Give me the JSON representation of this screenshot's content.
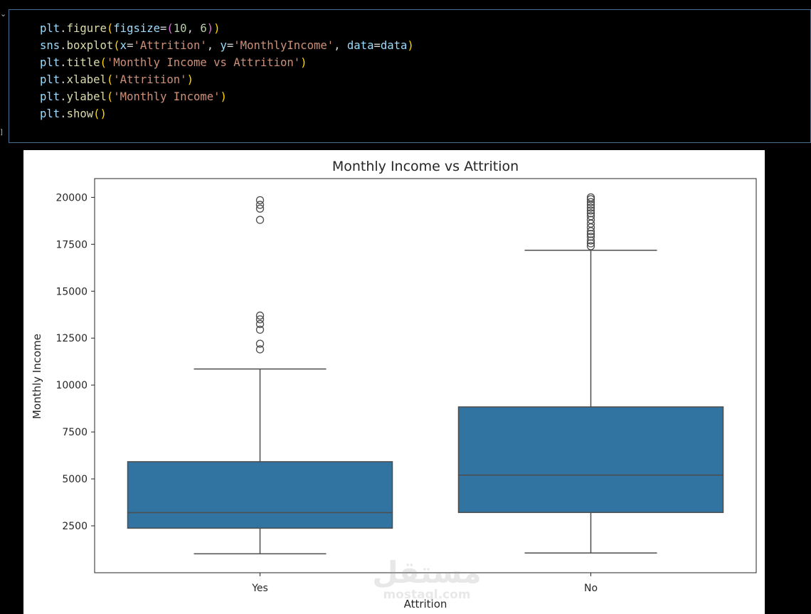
{
  "cell": {
    "code_lines": [
      [
        {
          "t": "plt",
          "c": "var"
        },
        {
          "t": ".",
          "c": "op"
        },
        {
          "t": "figure",
          "c": "fn"
        },
        {
          "t": "(",
          "c": "p1"
        },
        {
          "t": "figsize",
          "c": "var"
        },
        {
          "t": "=",
          "c": "op"
        },
        {
          "t": "(",
          "c": "p2"
        },
        {
          "t": "10",
          "c": "num"
        },
        {
          "t": ", ",
          "c": "op"
        },
        {
          "t": "6",
          "c": "num"
        },
        {
          "t": ")",
          "c": "p2"
        },
        {
          "t": ")",
          "c": "p1"
        }
      ],
      [
        {
          "t": "sns",
          "c": "var"
        },
        {
          "t": ".",
          "c": "op"
        },
        {
          "t": "boxplot",
          "c": "fn"
        },
        {
          "t": "(",
          "c": "p1"
        },
        {
          "t": "x",
          "c": "var"
        },
        {
          "t": "=",
          "c": "op"
        },
        {
          "t": "'Attrition'",
          "c": "str"
        },
        {
          "t": ", ",
          "c": "op"
        },
        {
          "t": "y",
          "c": "var"
        },
        {
          "t": "=",
          "c": "op"
        },
        {
          "t": "'MonthlyIncome'",
          "c": "str"
        },
        {
          "t": ", ",
          "c": "op"
        },
        {
          "t": "data",
          "c": "var"
        },
        {
          "t": "=",
          "c": "op"
        },
        {
          "t": "data",
          "c": "var"
        },
        {
          "t": ")",
          "c": "p1"
        }
      ],
      [
        {
          "t": "plt",
          "c": "var"
        },
        {
          "t": ".",
          "c": "op"
        },
        {
          "t": "title",
          "c": "fn"
        },
        {
          "t": "(",
          "c": "p1"
        },
        {
          "t": "'Monthly Income vs Attrition'",
          "c": "str"
        },
        {
          "t": ")",
          "c": "p1"
        }
      ],
      [
        {
          "t": "plt",
          "c": "var"
        },
        {
          "t": ".",
          "c": "op"
        },
        {
          "t": "xlabel",
          "c": "fn"
        },
        {
          "t": "(",
          "c": "p1"
        },
        {
          "t": "'Attrition'",
          "c": "str"
        },
        {
          "t": ")",
          "c": "p1"
        }
      ],
      [
        {
          "t": "plt",
          "c": "var"
        },
        {
          "t": ".",
          "c": "op"
        },
        {
          "t": "ylabel",
          "c": "fn"
        },
        {
          "t": "(",
          "c": "p1"
        },
        {
          "t": "'Monthly Income'",
          "c": "str"
        },
        {
          "t": ")",
          "c": "p1"
        }
      ],
      [
        {
          "t": "plt",
          "c": "var"
        },
        {
          "t": ".",
          "c": "op"
        },
        {
          "t": "show",
          "c": "fn"
        },
        {
          "t": "()",
          "c": "p1"
        }
      ]
    ],
    "gutter": {
      "collapse_glyph": "⌄",
      "bracket_glyph": "]"
    }
  },
  "watermark": {
    "arabic": "مستقل",
    "latin": "mostaql.com"
  },
  "chart_data": {
    "type": "box",
    "title": "Monthly Income vs Attrition",
    "xlabel": "Attrition",
    "ylabel": "Monthly Income",
    "categories": [
      "Yes",
      "No"
    ],
    "ylim": [
      0,
      21000
    ],
    "yticks": [
      2500,
      5000,
      7500,
      10000,
      12500,
      15000,
      17500,
      20000
    ],
    "ytick_labels": [
      "2500",
      "5000",
      "7500",
      "10000",
      "12500",
      "15000",
      "17500",
      "20000"
    ],
    "box_color": "#3274a1",
    "line_color": "#4d4d4d",
    "grid": false,
    "legend": "none",
    "boxes": [
      {
        "category": "Yes",
        "whisker_low": 1009,
        "q1": 2373,
        "median": 3202,
        "q3": 5916,
        "whisker_high": 10854,
        "outliers": [
          11900,
          12200,
          12950,
          13250,
          13500,
          13700,
          18800,
          19400,
          19600,
          19850
        ]
      },
      {
        "category": "No",
        "whisker_low": 1051,
        "q1": 3211,
        "median": 5204,
        "q3": 8834,
        "whisker_high": 17181,
        "outliers": [
          17400,
          17550,
          17700,
          17900,
          18050,
          18200,
          18400,
          18600,
          18800,
          19000,
          19150,
          19300,
          19450,
          19600,
          19750,
          19900,
          19999
        ]
      }
    ]
  }
}
